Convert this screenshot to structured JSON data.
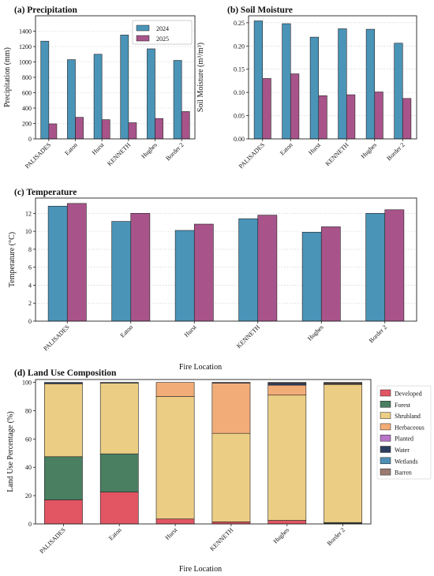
{
  "colors": {
    "y2024": "#4a94b8",
    "y2025": "#a8548a",
    "Developed": "#e25563",
    "Forest": "#4a7f62",
    "Shrubland": "#eccd84",
    "Herbaceous": "#f2ac78",
    "Planted": "#b774c8",
    "Water": "#2c3f5f",
    "Wetlands": "#4f8fb3",
    "Barren": "#9a7b72"
  },
  "chart_data": [
    {
      "id": "a",
      "type": "bar",
      "title": "(a) Precipitation",
      "xlabel": "",
      "ylabel": "Precipitation (mm)",
      "categories": [
        "PALISADES",
        "Eaton",
        "Hurst",
        "KENNETH",
        "Hughes",
        "Border 2"
      ],
      "series": [
        {
          "name": "2024",
          "values": [
            1270,
            1030,
            1100,
            1350,
            1170,
            1020
          ]
        },
        {
          "name": "2025",
          "values": [
            195,
            280,
            250,
            210,
            265,
            355
          ]
        }
      ],
      "ylim": [
        0,
        1600
      ],
      "yticks": [
        0,
        200,
        400,
        600,
        800,
        1000,
        1200,
        1400
      ],
      "legend": "top-right",
      "grid": "y-dotted"
    },
    {
      "id": "b",
      "type": "bar",
      "title": "(b) Soil Moisture",
      "xlabel": "",
      "ylabel": "Soil Moisture (m³/m³)",
      "categories": [
        "PALISADES",
        "Eaton",
        "Hurst",
        "KENNETH",
        "Hughes",
        "Border 2"
      ],
      "series": [
        {
          "name": "2024",
          "values": [
            0.254,
            0.248,
            0.219,
            0.237,
            0.236,
            0.206
          ]
        },
        {
          "name": "2025",
          "values": [
            0.13,
            0.14,
            0.093,
            0.095,
            0.101,
            0.087
          ]
        }
      ],
      "ylim": [
        0,
        0.265
      ],
      "yticks": [
        0.0,
        0.05,
        0.1,
        0.15,
        0.2,
        0.25
      ],
      "grid": "y-dotted"
    },
    {
      "id": "c",
      "type": "bar",
      "title": "(c) Temperature",
      "xlabel": "Fire Location",
      "ylabel": "Temperature (°C)",
      "categories": [
        "PALISADES",
        "Eaton",
        "Hurst",
        "KENNETH",
        "Hughes",
        "Border 2"
      ],
      "series": [
        {
          "name": "2024",
          "values": [
            12.8,
            11.1,
            10.1,
            11.4,
            9.9,
            12.0
          ]
        },
        {
          "name": "2025",
          "values": [
            13.1,
            12.0,
            10.8,
            11.8,
            10.5,
            12.4
          ]
        }
      ],
      "ylim": [
        0,
        13.7
      ],
      "yticks": [
        0,
        2,
        4,
        6,
        8,
        10,
        12
      ],
      "grid": "y-dotted"
    },
    {
      "id": "d",
      "type": "bar",
      "stacked": true,
      "title": "(d) Land Use Composition",
      "xlabel": "Fire Location",
      "ylabel": "Land Use Percentage (%)",
      "categories": [
        "PALISADES",
        "Eaton",
        "Hurst",
        "KENNETH",
        "Hughes",
        "Border 2"
      ],
      "series": [
        {
          "name": "Developed",
          "values": [
            17,
            22.5,
            3.5,
            1.5,
            2.5,
            0.5
          ]
        },
        {
          "name": "Forest",
          "values": [
            30.5,
            27,
            0,
            0,
            0,
            0.5
          ]
        },
        {
          "name": "Shrubland",
          "values": [
            51.5,
            50,
            86.5,
            62.5,
            88.5,
            97.5
          ]
        },
        {
          "name": "Herbaceous",
          "values": [
            0,
            0,
            10,
            35.5,
            7,
            0.5
          ]
        },
        {
          "name": "Planted",
          "values": [
            0,
            0,
            0,
            0,
            0,
            0
          ]
        },
        {
          "name": "Water",
          "values": [
            1,
            0.5,
            0,
            0.5,
            1.5,
            0.5
          ]
        },
        {
          "name": "Wetlands",
          "values": [
            0,
            0,
            0,
            0,
            0,
            0
          ]
        },
        {
          "name": "Barren",
          "values": [
            0,
            0,
            0,
            0,
            0.5,
            0.5
          ]
        }
      ],
      "ylim": [
        0,
        102
      ],
      "yticks": [
        0,
        20,
        40,
        60,
        80,
        100
      ],
      "legend": "outside-right"
    }
  ]
}
